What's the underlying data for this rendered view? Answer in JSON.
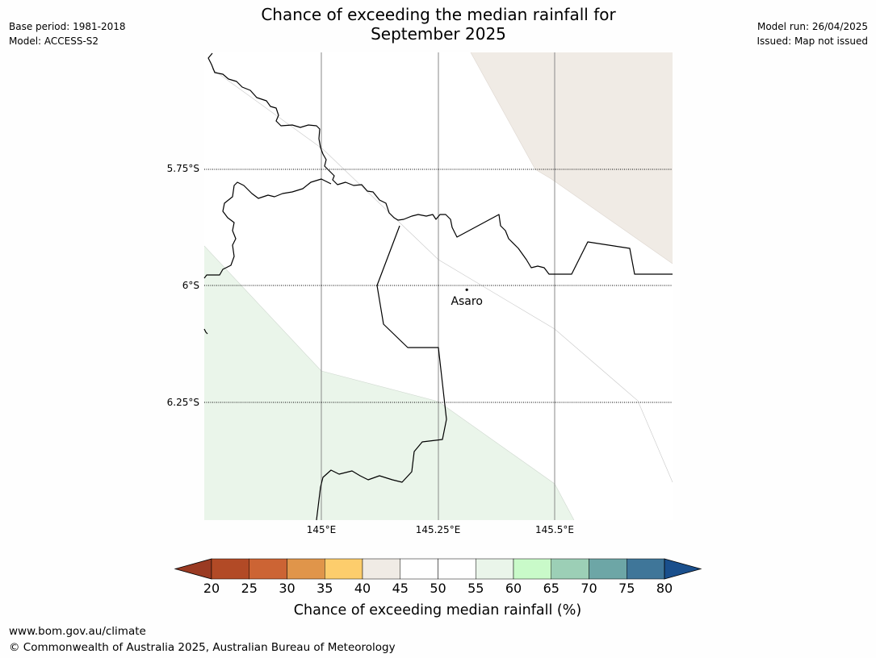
{
  "title_line1": "Chance of exceeding the median rainfall for",
  "title_line2": "September 2025",
  "meta_left": {
    "base_period": "Base period: 1981-2018",
    "model": "Model: ACCESS-S2"
  },
  "meta_right": {
    "model_run": "Model run: 26/04/2025",
    "issued": "Issued: Map not issued"
  },
  "map": {
    "latitudes": [
      {
        "value": -5.75,
        "label": "5.75°S"
      },
      {
        "value": -6.0,
        "label": "6°S"
      },
      {
        "value": -6.25,
        "label": "6.25°S"
      }
    ],
    "longitudes": [
      {
        "value": 145.0,
        "label": "145°E"
      },
      {
        "value": 145.25,
        "label": "145.25°E"
      },
      {
        "value": 145.5,
        "label": "145.5°E"
      }
    ],
    "places": [
      {
        "name": "Asaro",
        "lon": 145.31,
        "lat": -6.01
      }
    ],
    "regions": [
      {
        "category": "40-45",
        "color": "#f0ebe5"
      },
      {
        "category": "55-60",
        "color": "#eaf5ea"
      }
    ]
  },
  "colorbar": {
    "title": "Chance of exceeding median rainfall (%)",
    "ticks": [
      "20",
      "25",
      "30",
      "35",
      "40",
      "45",
      "50",
      "55",
      "60",
      "65",
      "70",
      "75",
      "80"
    ],
    "under_color": "#9a3a22",
    "over_color": "#1a4f8c",
    "colors": [
      "#b24a26",
      "#cc6434",
      "#e0954a",
      "#fdcd6c",
      "#f0ebe5",
      "#ffffff",
      "#ffffff",
      "#eaf5ea",
      "#c9fac9",
      "#9ccfb6",
      "#6da6a6",
      "#3f7699"
    ]
  },
  "footer": {
    "url": "www.bom.gov.au/climate",
    "copyright": "© Commonwealth of Australia 2025, Australian Bureau of Meteorology"
  }
}
